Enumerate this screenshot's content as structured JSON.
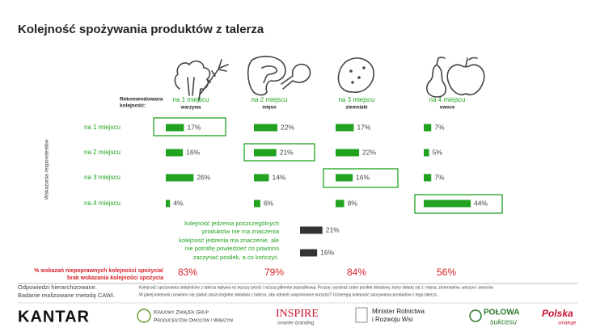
{
  "title": "Kolejność spożywania produktów z talerza",
  "recommended_label": [
    "Rekomendowana",
    "kolejność:"
  ],
  "side_label": "Wskazania respondentów",
  "columns": [
    {
      "rank": "na 1 miejscu",
      "item": "warzywa"
    },
    {
      "rank": "na 2 miejscu",
      "item": "mięso"
    },
    {
      "rank": "na 3 miejscu",
      "item": "ziemniaki"
    },
    {
      "rank": "na 4 miejscu",
      "item": "owoce"
    }
  ],
  "rows": [
    {
      "label": "na 1 miejscu",
      "values": [
        17,
        22,
        17,
        7
      ],
      "value_labels": [
        "17%",
        "22%",
        "17%",
        "7%"
      ]
    },
    {
      "label": "na 2 miejscu",
      "values": [
        16,
        21,
        22,
        5
      ],
      "value_labels": [
        "16%",
        "21%",
        "22%",
        "5%"
      ]
    },
    {
      "label": "na 3 miejscu",
      "values": [
        26,
        14,
        16,
        7
      ],
      "value_labels": [
        "26%",
        "14%",
        "16%",
        "7%"
      ]
    },
    {
      "label": "na 4 miejscu",
      "values": [
        4,
        6,
        8,
        44
      ],
      "value_labels": [
        "4%",
        "6%",
        "8%",
        "44%"
      ]
    }
  ],
  "no_order": [
    {
      "label_lines": [
        "kolejność jedzenia poszczególnych",
        "produktów nie ma znaczenia"
      ],
      "value": 21,
      "value_label": "21%"
    },
    {
      "label_lines": [
        "kolejność jedzenia ma znaczenie, ale",
        "nie potrafię powiedzieć co powinno",
        "zaczynać posiłek, a co kończyć."
      ],
      "value": 16,
      "value_label": "16%"
    }
  ],
  "incorrect": {
    "label_lines": [
      "% wskazań niepoprawnych kolejności spożycia/",
      "brak wskazania kolejności spożycia"
    ],
    "values": [
      83,
      79,
      84,
      56
    ],
    "value_labels": [
      "83%",
      "79%",
      "84%",
      "56%"
    ]
  },
  "footer": {
    "notes": [
      "Odpowiedzi hierarchizowane.",
      "Badanie realizowane metodą CAWI."
    ],
    "description": [
      "Kolejność spożywania składników z talerza wpływa na lepszą sytość i niższą glikemię poposiłkową. Proszę, wyobraź sobie posiłek obiadowy, który składa się z: mięsa, ziemniaków, warzyw i owoców.",
      "W jakiej kolejności powinno się zjadać poszczególne składniki z talerza, aby odnieść wspomniane korzyści? Uszereguj kolejność spożywania produktów z tego talerza."
    ]
  },
  "logos": [
    {
      "lines": [
        "KANTAR"
      ]
    },
    {
      "lines": [
        "Krajowy Związek Grup",
        "Producentów Owoców i Warzyw"
      ]
    },
    {
      "lines": [
        "INSPIRE",
        "smarter branding"
      ]
    },
    {
      "lines": [
        "Minister Rolnictwa",
        "i Rozwoju Wsi"
      ]
    },
    {
      "lines": [
        "POŁOWA",
        "sukcesu"
      ]
    },
    {
      "lines": [
        "Polska",
        "smakuje"
      ]
    }
  ]
}
